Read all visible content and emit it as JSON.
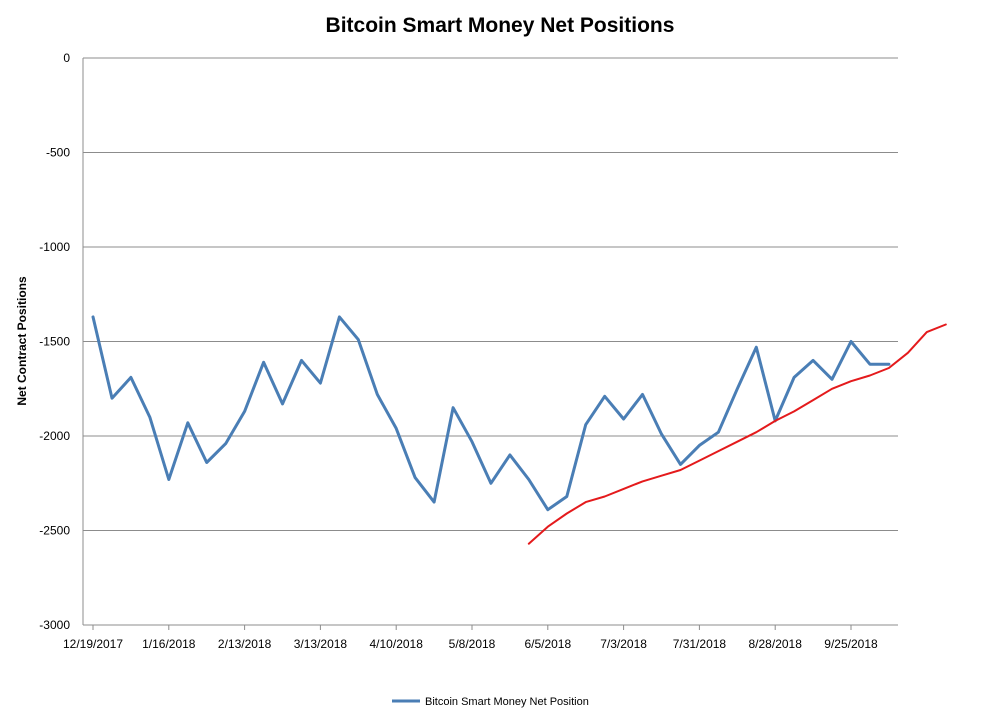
{
  "chart_data": {
    "type": "line",
    "title": "Bitcoin Smart Money Net Positions",
    "xlabel": "",
    "ylabel": "Net Contract Positions",
    "ylim": [
      -3000,
      0
    ],
    "yticks": [
      0,
      -500,
      -1000,
      -1500,
      -2000,
      -2500,
      -3000
    ],
    "x_tick_labels": [
      "12/19/2017",
      "1/16/2018",
      "2/13/2018",
      "3/13/2018",
      "4/10/2018",
      "5/8/2018",
      "6/5/2018",
      "7/3/2018",
      "7/31/2018",
      "8/28/2018",
      "9/25/2018"
    ],
    "grid": "horizontal",
    "legend": "bottom",
    "series": [
      {
        "name": "Bitcoin Smart Money Net Position",
        "color": "#4a7eb5",
        "x": [
          "12/19/2017",
          "12/26/2017",
          "1/2/2018",
          "1/9/2018",
          "1/16/2018",
          "1/23/2018",
          "1/30/2018",
          "2/6/2018",
          "2/13/2018",
          "2/20/2018",
          "2/27/2018",
          "3/6/2018",
          "3/13/2018",
          "3/20/2018",
          "3/27/2018",
          "4/3/2018",
          "4/10/2018",
          "4/17/2018",
          "4/24/2018",
          "5/1/2018",
          "5/8/2018",
          "5/15/2018",
          "5/22/2018",
          "5/29/2018",
          "6/5/2018",
          "6/12/2018",
          "6/19/2018",
          "6/26/2018",
          "7/3/2018",
          "7/10/2018",
          "7/17/2018",
          "7/24/2018",
          "7/31/2018",
          "8/7/2018",
          "8/14/2018",
          "8/21/2018",
          "8/28/2018",
          "9/4/2018",
          "9/11/2018",
          "9/18/2018",
          "9/25/2018",
          "10/2/2018",
          "10/9/2018"
        ],
        "values": [
          -1370,
          -1800,
          -1690,
          -1900,
          -2230,
          -1930,
          -2140,
          -2040,
          -1870,
          -1610,
          -1830,
          -1600,
          -1720,
          -1370,
          -1490,
          -1780,
          -1960,
          -2220,
          -2350,
          -1850,
          -2030,
          -2250,
          -2100,
          -2230,
          -2390,
          -2320,
          -1940,
          -1790,
          -1910,
          -1780,
          -1990,
          -2150,
          -2050,
          -1980,
          -1750,
          -1530,
          -1920,
          -1690,
          -1600,
          -1700,
          -1500,
          -1620,
          -1620
        ]
      },
      {
        "name": "",
        "color": "#e41a1c",
        "x": [
          "5/29/2018",
          "6/5/2018",
          "6/12/2018",
          "6/19/2018",
          "6/26/2018",
          "7/3/2018",
          "7/10/2018",
          "7/17/2018",
          "7/24/2018",
          "7/31/2018",
          "8/7/2018",
          "8/14/2018",
          "8/21/2018",
          "8/28/2018",
          "9/4/2018",
          "9/11/2018",
          "9/18/2018",
          "9/25/2018",
          "10/2/2018",
          "10/9/2018",
          "10/16/2018",
          "10/23/2018",
          "10/30/2018"
        ],
        "values": [
          -2570,
          -2480,
          -2410,
          -2350,
          -2320,
          -2280,
          -2240,
          -2210,
          -2180,
          -2130,
          -2080,
          -2030,
          -1980,
          -1920,
          -1870,
          -1810,
          -1750,
          -1710,
          -1680,
          -1640,
          -1560,
          -1450,
          -1410
        ]
      }
    ]
  }
}
